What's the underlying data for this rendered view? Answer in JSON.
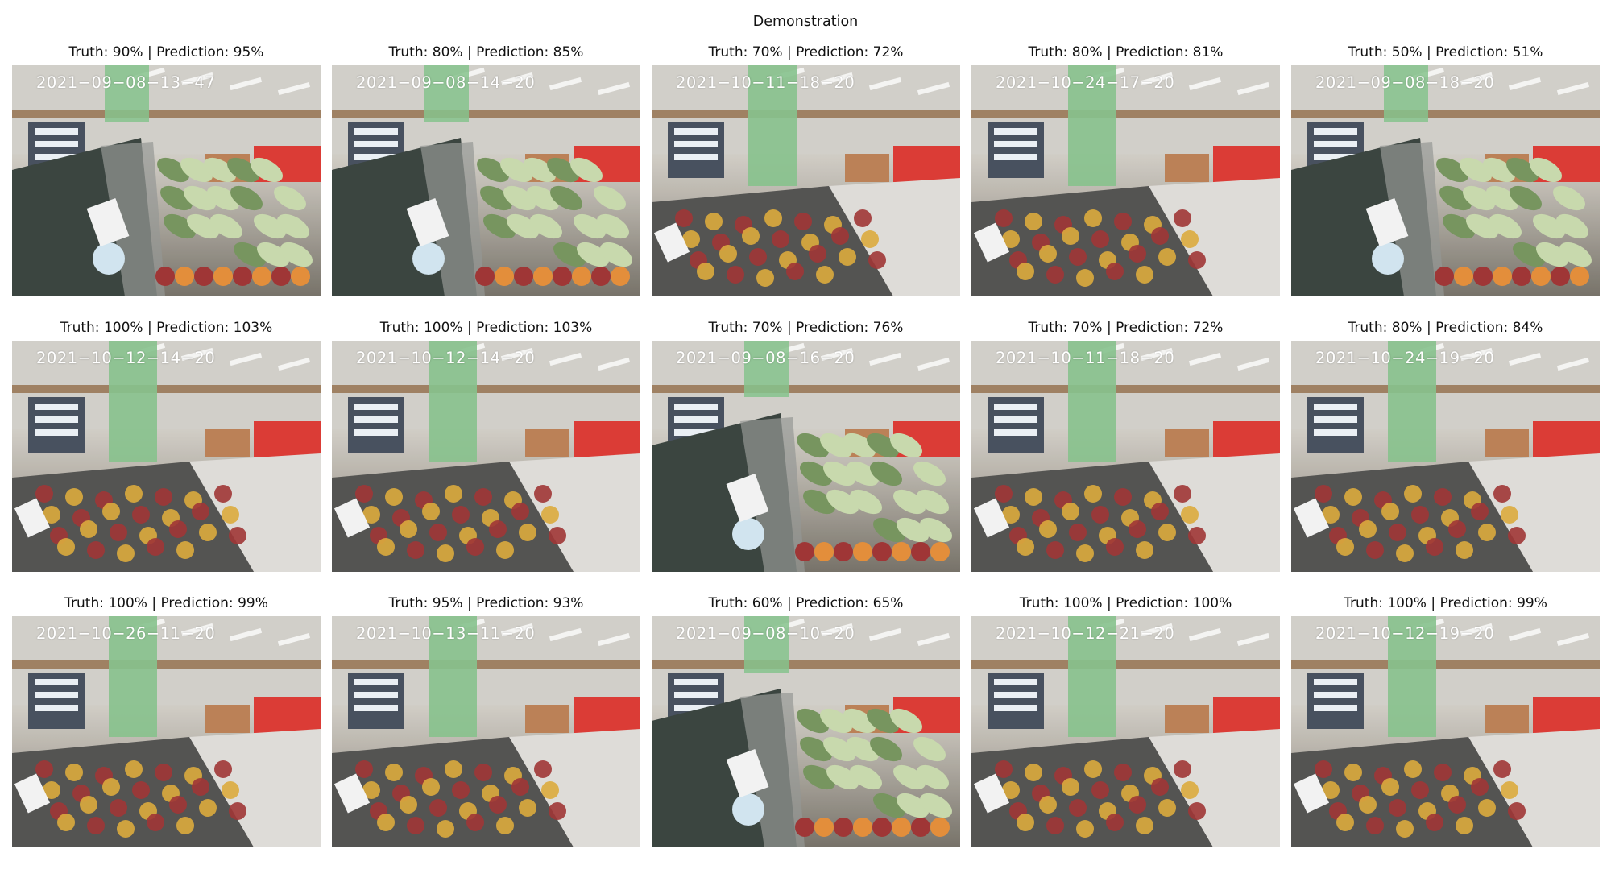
{
  "figure": {
    "title": "Demonstration"
  },
  "panels": [
    {
      "truth": "90%",
      "prediction": "95%",
      "caption": "Truth: 90% | Prediction: 95%",
      "timestamp": "2021−09−08−13−47",
      "view": "close"
    },
    {
      "truth": "80%",
      "prediction": "85%",
      "caption": "Truth: 80% | Prediction: 85%",
      "timestamp": "2021−09−08−14−20",
      "view": "close"
    },
    {
      "truth": "70%",
      "prediction": "72%",
      "caption": "Truth: 70% | Prediction: 72%",
      "timestamp": "2021−10−11−18−20",
      "view": "wide"
    },
    {
      "truth": "80%",
      "prediction": "81%",
      "caption": "Truth: 80% | Prediction: 81%",
      "timestamp": "2021−10−24−17−20",
      "view": "wide"
    },
    {
      "truth": "50%",
      "prediction": "51%",
      "caption": "Truth: 50% | Prediction: 51%",
      "timestamp": "2021−09−08−18−20",
      "view": "close"
    },
    {
      "truth": "100%",
      "prediction": "103%",
      "caption": "Truth: 100% | Prediction: 103%",
      "timestamp": "2021−10−12−14−20",
      "view": "wide"
    },
    {
      "truth": "100%",
      "prediction": "103%",
      "caption": "Truth: 100% | Prediction: 103%",
      "timestamp": "2021−10−12−14−20",
      "view": "wide"
    },
    {
      "truth": "70%",
      "prediction": "76%",
      "caption": "Truth: 70% | Prediction: 76%",
      "timestamp": "2021−09−08−16−20",
      "view": "close"
    },
    {
      "truth": "70%",
      "prediction": "72%",
      "caption": "Truth: 70% | Prediction: 72%",
      "timestamp": "2021−10−11−18−20",
      "view": "wide"
    },
    {
      "truth": "80%",
      "prediction": "84%",
      "caption": "Truth: 80% | Prediction: 84%",
      "timestamp": "2021−10−24−19−20",
      "view": "wide"
    },
    {
      "truth": "100%",
      "prediction": "99%",
      "caption": "Truth: 100% | Prediction: 99%",
      "timestamp": "2021−10−26−11−20",
      "view": "wide"
    },
    {
      "truth": "95%",
      "prediction": "93%",
      "caption": "Truth: 95% | Prediction: 93%",
      "timestamp": "2021−10−13−11−20",
      "view": "wide"
    },
    {
      "truth": "60%",
      "prediction": "65%",
      "caption": "Truth: 60% | Prediction: 65%",
      "timestamp": "2021−09−08−10−20",
      "view": "close"
    },
    {
      "truth": "100%",
      "prediction": "100%",
      "caption": "Truth: 100% | Prediction: 100%",
      "timestamp": "2021−10−12−21−20",
      "view": "wide"
    },
    {
      "truth": "100%",
      "prediction": "99%",
      "caption": "Truth: 100% | Prediction: 99%",
      "timestamp": "2021−10−12−19−20",
      "view": "wide"
    }
  ],
  "colors": {
    "background": "#ffffff",
    "text": "#111111",
    "timestamp_text": "#ffffff",
    "green_banner": "#7fbf86",
    "red_display": "#d9302a",
    "produce_yellow": "#d9a632",
    "produce_red": "#9a2a2a"
  }
}
